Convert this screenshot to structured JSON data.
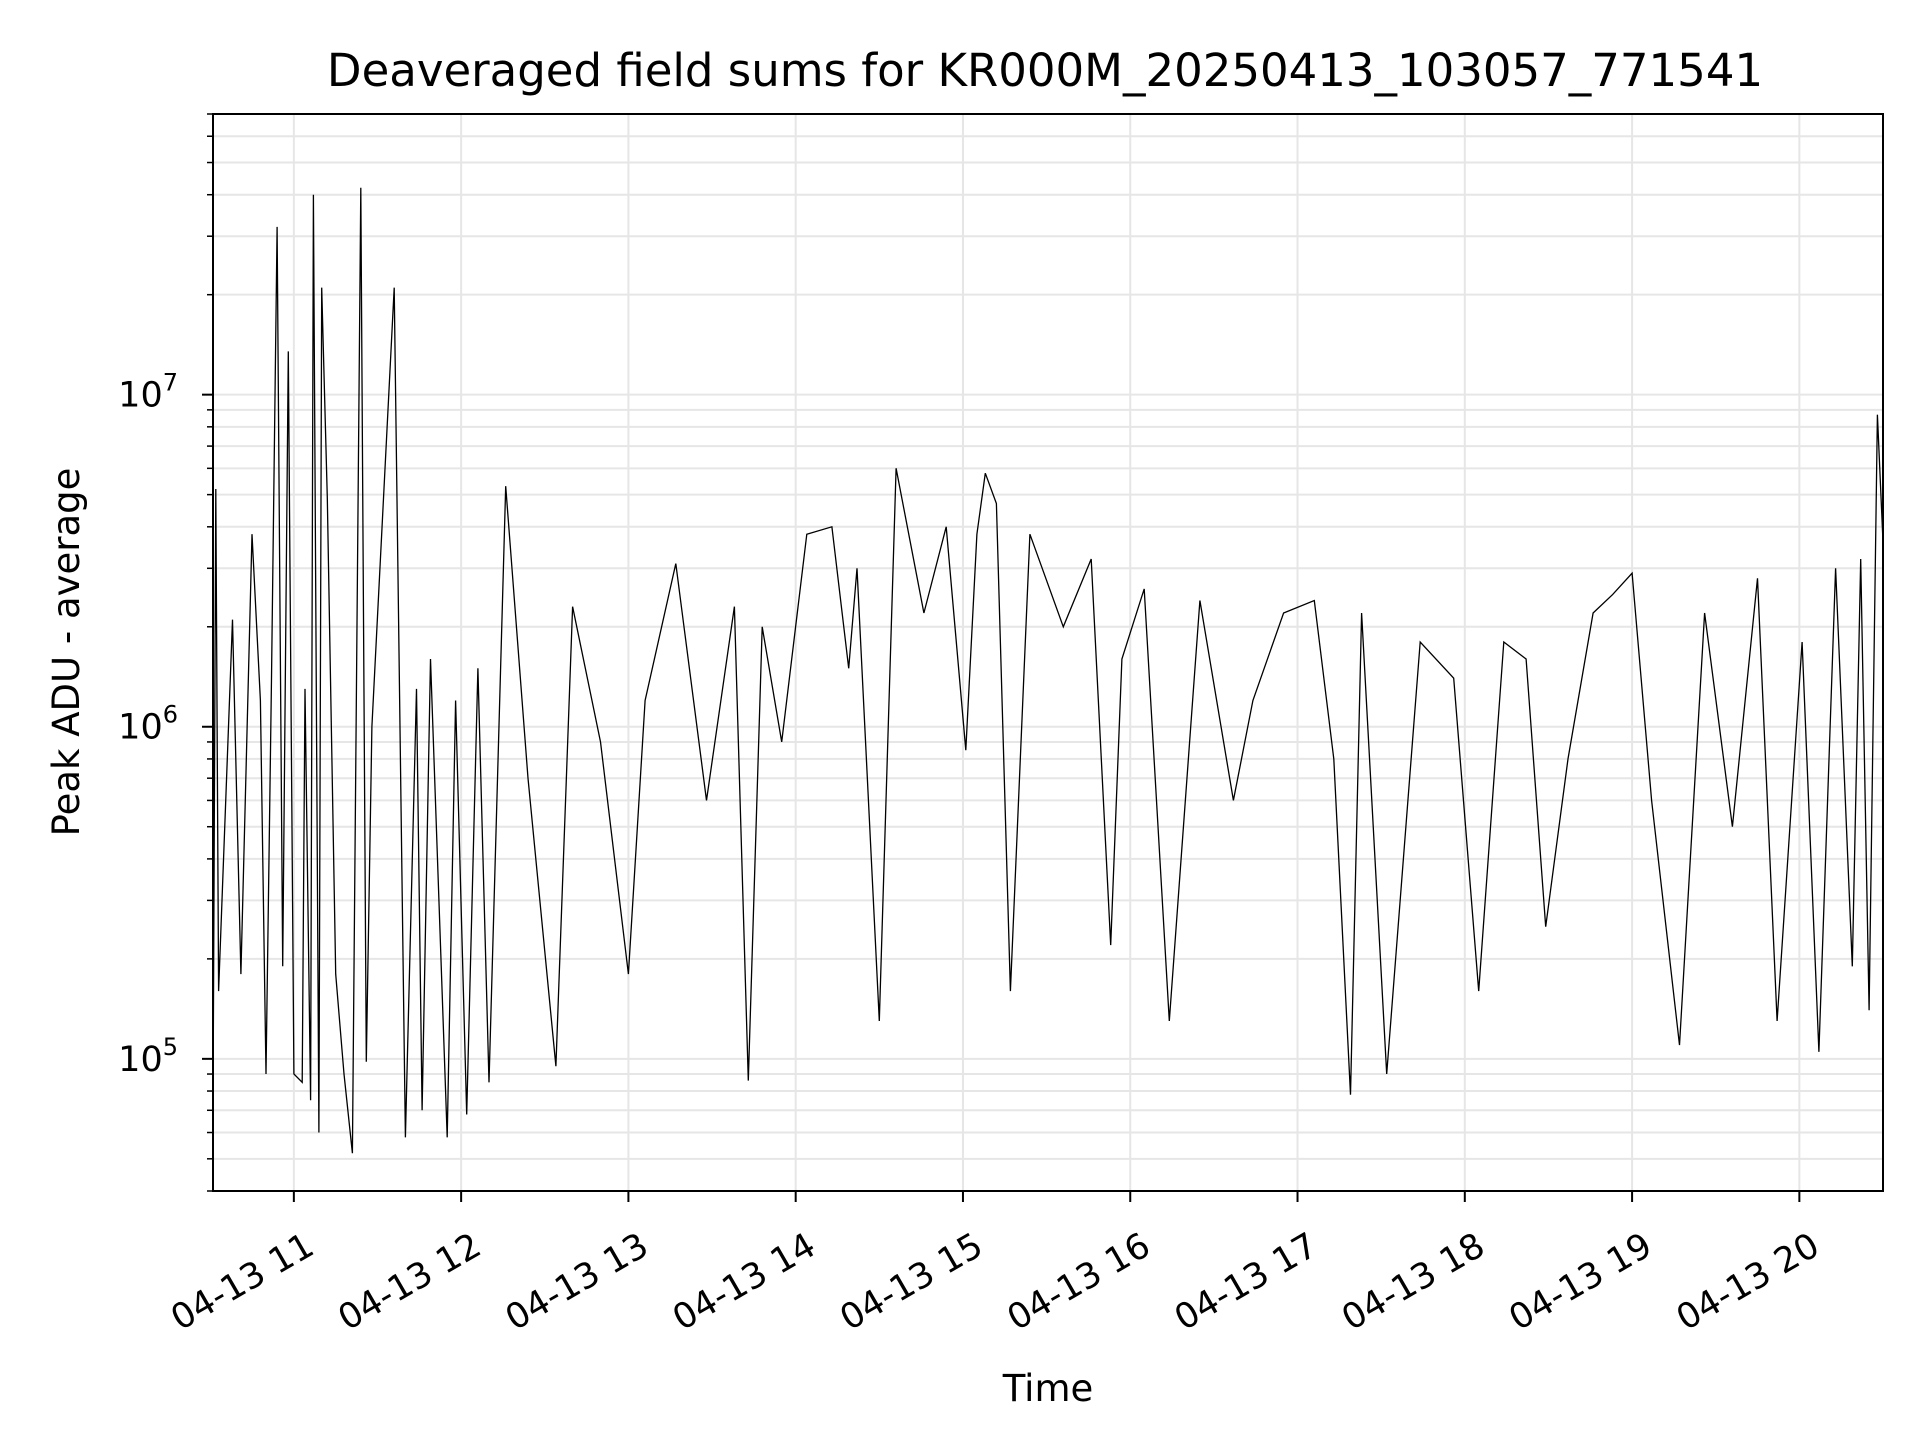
{
  "chart_data": {
    "type": "line",
    "title": "Deaveraged field sums for KR000M_20250413_103057_771541",
    "xlabel": "Time",
    "ylabel": "Peak ADU - average",
    "y_scale": "log",
    "ylim": [
      40000,
      70000000
    ],
    "xlim": [
      "04-13 10:31",
      "04-13 20:30"
    ],
    "x_ticks": [
      "04-13 11",
      "04-13 12",
      "04-13 13",
      "04-13 14",
      "04-13 15",
      "04-13 16",
      "04-13 17",
      "04-13 18",
      "04-13 19",
      "04-13 20"
    ],
    "y_ticks": [
      {
        "value": 100000,
        "base": "10",
        "exp": "5"
      },
      {
        "value": 1000000,
        "base": "10",
        "exp": "6"
      },
      {
        "value": 10000000,
        "base": "10",
        "exp": "7"
      }
    ],
    "grid": true,
    "line_color": "#000000",
    "grid_color": "#e6e6e6",
    "series": [
      {
        "x": [
          "04-13 10:31",
          "04-13 10:32",
          "04-13 10:33",
          "04-13 10:38",
          "04-13 10:41",
          "04-13 10:45",
          "04-13 10:48",
          "04-13 10:50",
          "04-13 10:52",
          "04-13 10:54",
          "04-13 10:56",
          "04-13 10:58",
          "04-13 11:00",
          "04-13 11:03",
          "04-13 11:04",
          "04-13 11:06",
          "04-13 11:07",
          "04-13 11:09",
          "04-13 11:10",
          "04-13 11:12",
          "04-13 11:15",
          "04-13 11:18",
          "04-13 11:21",
          "04-13 11:24",
          "04-13 11:26",
          "04-13 11:28",
          "04-13 11:36",
          "04-13 11:40",
          "04-13 11:44",
          "04-13 11:46",
          "04-13 11:49",
          "04-13 11:55",
          "04-13 11:58",
          "04-13 12:02",
          "04-13 12:06",
          "04-13 12:10",
          "04-13 12:16",
          "04-13 12:24",
          "04-13 12:34",
          "04-13 12:40",
          "04-13 12:50",
          "04-13 13:00",
          "04-13 13:06",
          "04-13 13:17",
          "04-13 13:28",
          "04-13 13:38",
          "04-13 13:43",
          "04-13 13:48",
          "04-13 13:55",
          "04-13 14:04",
          "04-13 14:13",
          "04-13 14:19",
          "04-13 14:22",
          "04-13 14:30",
          "04-13 14:36",
          "04-13 14:46",
          "04-13 14:54",
          "04-13 15:01",
          "04-13 15:05",
          "04-13 15:08",
          "04-13 15:12",
          "04-13 15:17",
          "04-13 15:24",
          "04-13 15:36",
          "04-13 15:46",
          "04-13 15:53",
          "04-13 15:57",
          "04-13 16:05",
          "04-13 16:14",
          "04-13 16:25",
          "04-13 16:37",
          "04-13 16:44",
          "04-13 16:55",
          "04-13 17:06",
          "04-13 17:13",
          "04-13 17:19",
          "04-13 17:23",
          "04-13 17:32",
          "04-13 17:44",
          "04-13 17:56",
          "04-13 18:05",
          "04-13 18:14",
          "04-13 18:22",
          "04-13 18:29",
          "04-13 18:37",
          "04-13 18:46",
          "04-13 18:53",
          "04-13 19:00",
          "04-13 19:07",
          "04-13 19:17",
          "04-13 19:26",
          "04-13 19:36",
          "04-13 19:45",
          "04-13 19:52",
          "04-13 20:01",
          "04-13 20:07",
          "04-13 20:13",
          "04-13 20:19",
          "04-13 20:22",
          "04-13 20:25",
          "04-13 20:28",
          "04-13 20:30"
        ],
        "y": [
          70000,
          5200000,
          160000,
          2100000,
          180000,
          3800000,
          1200000,
          90000,
          1400000,
          32000000,
          190000,
          13500000,
          90000,
          85000,
          1300000,
          75000,
          40000000,
          60000,
          21000000,
          4900000,
          180000,
          90000,
          52000,
          42000000,
          98000,
          1000000,
          21000000,
          58000,
          1300000,
          70000,
          1600000,
          58000,
          1200000,
          68000,
          1500000,
          85000,
          5300000,
          700000,
          95000,
          2300000,
          900000,
          180000,
          1200000,
          3100000,
          600000,
          2300000,
          86000,
          2000000,
          900000,
          3800000,
          4000000,
          1500000,
          3000000,
          130000,
          6000000,
          2200000,
          4000000,
          850000,
          3800000,
          5800000,
          4700000,
          160000,
          3800000,
          2000000,
          3200000,
          220000,
          1600000,
          2600000,
          130000,
          2400000,
          600000,
          1200000,
          2200000,
          2400000,
          800000,
          78000,
          2200000,
          90000,
          1800000,
          1400000,
          160000,
          1800000,
          1600000,
          250000,
          800000,
          2200000,
          2500000,
          2900000,
          600000,
          110000,
          2200000,
          500000,
          2800000,
          130000,
          1800000,
          105000,
          3000000,
          190000,
          3200000,
          140000,
          8700000,
          3600000
        ]
      }
    ]
  }
}
